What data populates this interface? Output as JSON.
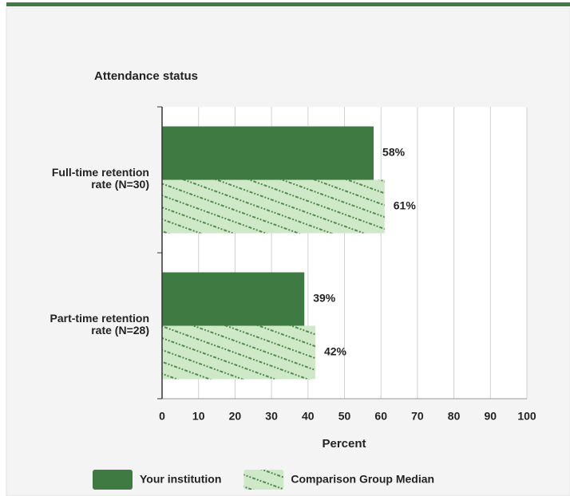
{
  "chart_data": {
    "type": "barh",
    "title": "Attendance status",
    "xlabel": "Percent",
    "categories": [
      [
        "Full-time retention",
        "rate (N=30)"
      ],
      [
        "Part-time retention",
        "rate (N=28)"
      ]
    ],
    "series": [
      {
        "name": "Your institution",
        "color": "#3f7a42",
        "values": [
          58,
          39
        ],
        "value_labels": [
          "58%",
          "39%"
        ]
      },
      {
        "name": "Comparison Group Median",
        "color": "#cfe8c8",
        "hatch": true,
        "values": [
          61,
          42
        ],
        "value_labels": [
          "61%",
          "42%"
        ]
      }
    ],
    "xlim": [
      0,
      100
    ],
    "xticks": [
      0,
      10,
      20,
      30,
      40,
      50,
      60,
      70,
      80,
      90,
      100
    ],
    "grid": true
  }
}
